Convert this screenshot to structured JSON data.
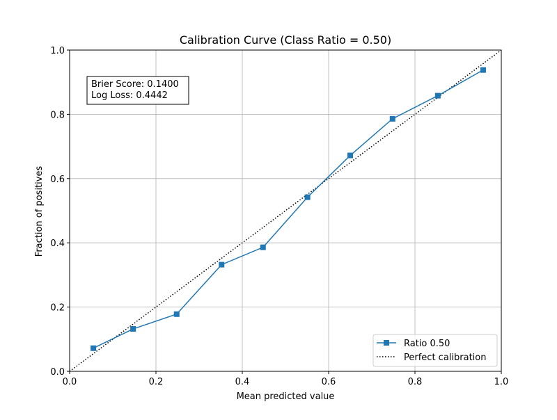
{
  "chart_data": {
    "type": "line",
    "title": "Calibration Curve (Class Ratio = 0.50)",
    "xlabel": "Mean predicted value",
    "ylabel": "Fraction of positives",
    "xlim": [
      0.0,
      1.0
    ],
    "ylim": [
      0.0,
      1.0
    ],
    "x_ticks": [
      "0.0",
      "0.2",
      "0.4",
      "0.6",
      "0.8",
      "1.0"
    ],
    "y_ticks": [
      "0.0",
      "0.2",
      "0.4",
      "0.6",
      "0.8",
      "1.0"
    ],
    "grid": true,
    "legend_position": "lower-right",
    "annotation": {
      "line1": "Brier Score: 0.1400",
      "line2": "Log Loss: 0.4442"
    },
    "series": [
      {
        "name": "Ratio 0.50",
        "color": "#1f77b4",
        "marker": "square",
        "line_style": "solid",
        "x": [
          0.055,
          0.147,
          0.248,
          0.352,
          0.448,
          0.551,
          0.65,
          0.748,
          0.853,
          0.958
        ],
        "y": [
          0.072,
          0.132,
          0.178,
          0.332,
          0.386,
          0.542,
          0.672,
          0.786,
          0.858,
          0.938
        ]
      },
      {
        "name": "Perfect calibration",
        "color": "#000000",
        "marker": "none",
        "line_style": "dotted",
        "x": [
          0.0,
          1.0
        ],
        "y": [
          0.0,
          1.0
        ]
      }
    ]
  }
}
